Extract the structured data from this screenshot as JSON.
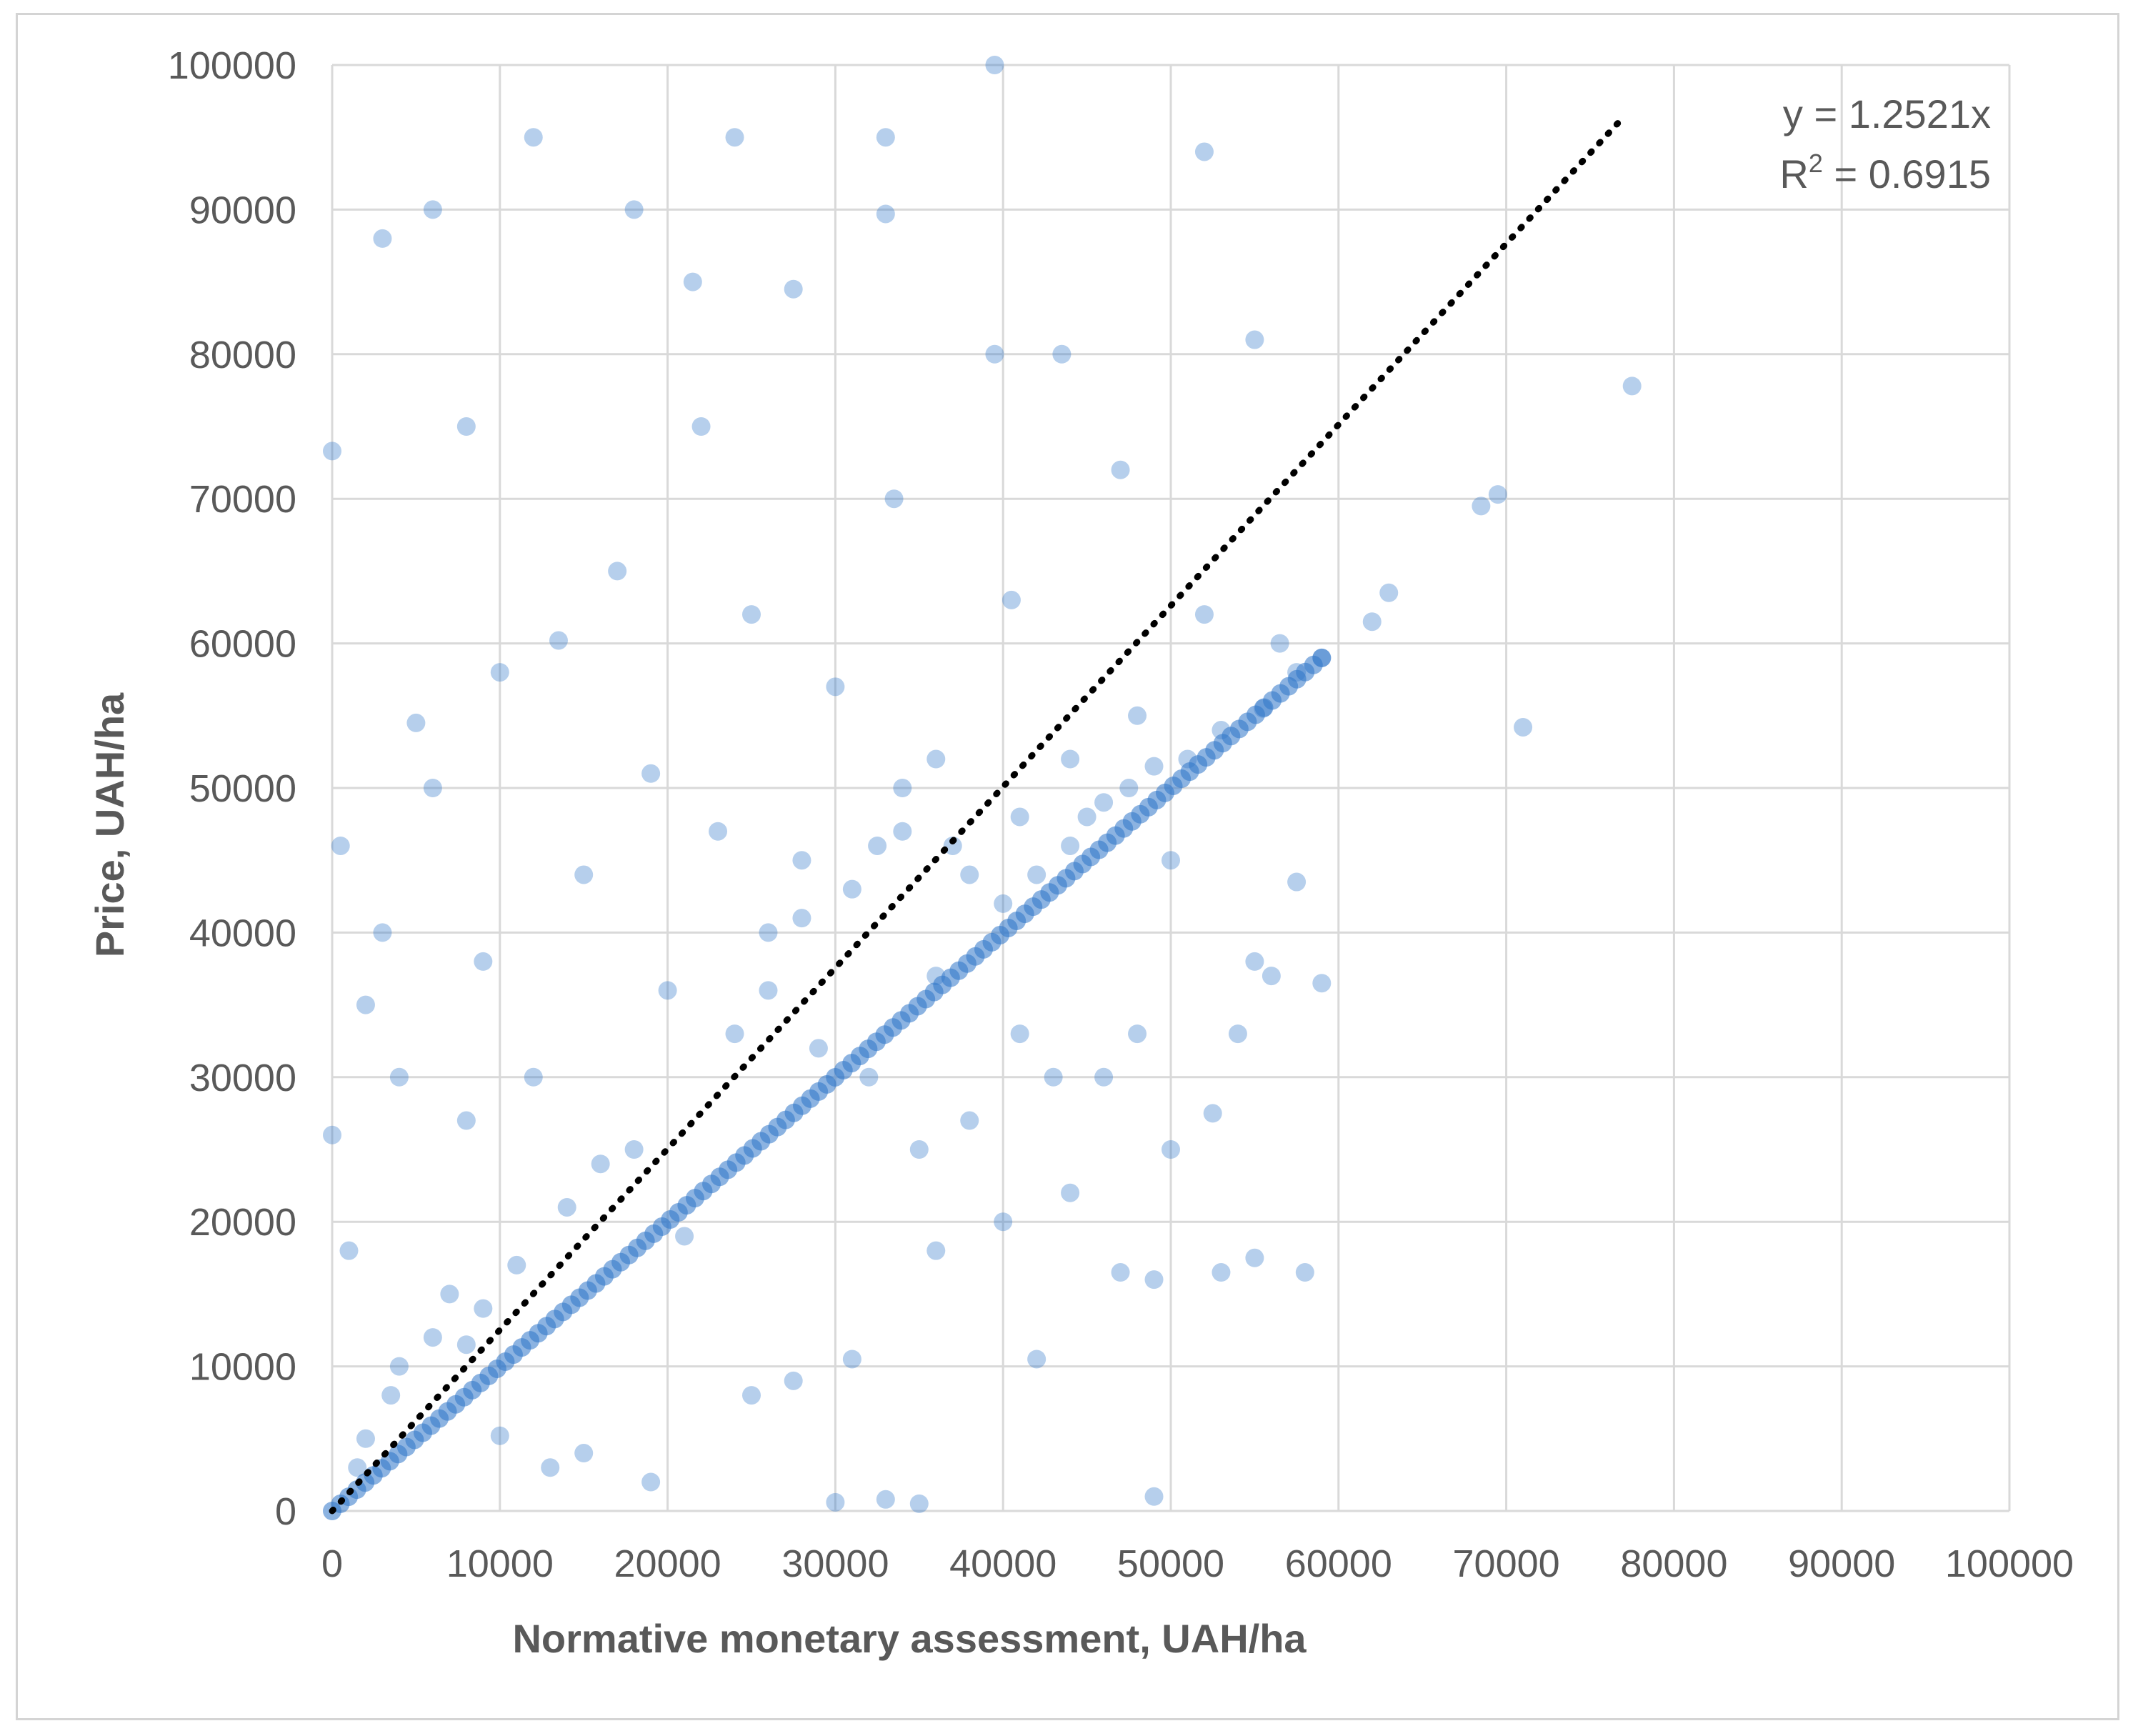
{
  "chart_data": {
    "type": "scatter",
    "title": "",
    "xlabel": "Normative monetary assessment, UAH/ha",
    "ylabel": "Price, UAH/ha",
    "xlim": [
      0,
      100000
    ],
    "ylim": [
      0,
      100000
    ],
    "x_ticks": [
      "0",
      "10000",
      "20000",
      "30000",
      "40000",
      "50000",
      "60000",
      "70000",
      "80000",
      "90000",
      "100000"
    ],
    "y_ticks": [
      "0",
      "10000",
      "20000",
      "30000",
      "40000",
      "50000",
      "60000",
      "70000",
      "80000",
      "90000",
      "100000"
    ],
    "grid": true,
    "legend": "none",
    "point_color": "#2e75c8",
    "trendline": {
      "slope": 1.2521,
      "x_range": [
        0,
        77000
      ],
      "style": "dotted",
      "color": "#000000",
      "equation": "y = 1.2521x",
      "r2_prefix": "R",
      "r2_sup": "2",
      "r2_value": " = 0.6915"
    },
    "series": [
      {
        "points": [
          [
            0,
            73300
          ],
          [
            5000,
            54500
          ],
          [
            8000,
            27000
          ],
          [
            12000,
            95000
          ],
          [
            13500,
            60200
          ],
          [
            18000,
            90000
          ],
          [
            20000,
            36000
          ],
          [
            21500,
            85000
          ],
          [
            25000,
            62000
          ],
          [
            27500,
            84500
          ],
          [
            28000,
            45000
          ],
          [
            30000,
            57000
          ],
          [
            32000,
            30000
          ],
          [
            33000,
            95000
          ],
          [
            33000,
            89700
          ],
          [
            33500,
            70000
          ],
          [
            34000,
            50000
          ],
          [
            39500,
            100000
          ],
          [
            39500,
            80000
          ],
          [
            40500,
            63000
          ],
          [
            43500,
            80000
          ],
          [
            44000,
            52000
          ],
          [
            47000,
            72000
          ],
          [
            48000,
            55000
          ],
          [
            50000,
            45000
          ],
          [
            52000,
            94000
          ],
          [
            52000,
            62000
          ],
          [
            55000,
            38000
          ],
          [
            55000,
            81000
          ],
          [
            56500,
            60000
          ],
          [
            62000,
            61500
          ],
          [
            63000,
            63500
          ],
          [
            68500,
            69500
          ],
          [
            69500,
            70300
          ],
          [
            71000,
            54200
          ],
          [
            77500,
            77800
          ],
          [
            10000,
            5200
          ],
          [
            15000,
            4000
          ],
          [
            19000,
            2000
          ],
          [
            13000,
            3000
          ],
          [
            25000,
            8000
          ],
          [
            27500,
            9000
          ],
          [
            31000,
            10500
          ],
          [
            36000,
            18000
          ],
          [
            40000,
            20000
          ],
          [
            42000,
            10500
          ],
          [
            44000,
            22000
          ],
          [
            47000,
            16500
          ],
          [
            49000,
            16000
          ],
          [
            53000,
            16500
          ],
          [
            55000,
            17500
          ],
          [
            58000,
            16500
          ],
          [
            52500,
            27500
          ],
          [
            56000,
            37000
          ],
          [
            54000,
            33000
          ],
          [
            59000,
            36500
          ],
          [
            57500,
            43500
          ],
          [
            50000,
            25000
          ],
          [
            46000,
            30000
          ],
          [
            48000,
            33000
          ],
          [
            30000,
            600
          ],
          [
            33000,
            800
          ],
          [
            35000,
            500
          ],
          [
            49000,
            1000
          ],
          [
            3000,
            40000
          ],
          [
            2000,
            35000
          ],
          [
            1000,
            18000
          ],
          [
            500,
            46000
          ],
          [
            0,
            26000
          ],
          [
            6000,
            90000
          ],
          [
            8000,
            75000
          ],
          [
            3000,
            88000
          ],
          [
            22000,
            75000
          ],
          [
            26000,
            40000
          ],
          [
            29000,
            32000
          ],
          [
            4000,
            10000
          ],
          [
            6000,
            12000
          ],
          [
            8000,
            11500
          ],
          [
            3500,
            8000
          ],
          [
            7000,
            15000
          ],
          [
            2000,
            5000
          ],
          [
            1500,
            3000
          ],
          [
            9000,
            14000
          ],
          [
            11000,
            17000
          ],
          [
            14000,
            21000
          ],
          [
            16000,
            24000
          ],
          [
            18000,
            25000
          ],
          [
            12000,
            30000
          ],
          [
            9000,
            38000
          ],
          [
            15000,
            44000
          ],
          [
            19000,
            51000
          ],
          [
            23000,
            47000
          ],
          [
            24000,
            33000
          ],
          [
            26000,
            36000
          ],
          [
            28000,
            41000
          ],
          [
            31000,
            43000
          ],
          [
            32500,
            46000
          ],
          [
            34000,
            47000
          ],
          [
            36000,
            52000
          ],
          [
            37000,
            46000
          ],
          [
            38000,
            44000
          ],
          [
            40000,
            42000
          ],
          [
            41000,
            48000
          ],
          [
            42000,
            44000
          ],
          [
            44000,
            46000
          ],
          [
            45000,
            48000
          ],
          [
            46000,
            49000
          ],
          [
            47500,
            50000
          ],
          [
            49000,
            51500
          ],
          [
            51000,
            52000
          ],
          [
            53000,
            54000
          ],
          [
            55500,
            55500
          ],
          [
            57500,
            58000
          ],
          [
            59000,
            59000
          ],
          [
            24000,
            95000
          ],
          [
            17000,
            65000
          ],
          [
            10000,
            58000
          ],
          [
            6000,
            50000
          ],
          [
            4000,
            30000
          ],
          [
            21000,
            19000
          ],
          [
            35000,
            25000
          ],
          [
            38000,
            27000
          ],
          [
            41000,
            33000
          ],
          [
            43000,
            30000
          ],
          [
            36000,
            37000
          ]
        ]
      }
    ],
    "lower_bound_line": {
      "slope": 1.0,
      "x_range": [
        0,
        59000
      ]
    }
  }
}
